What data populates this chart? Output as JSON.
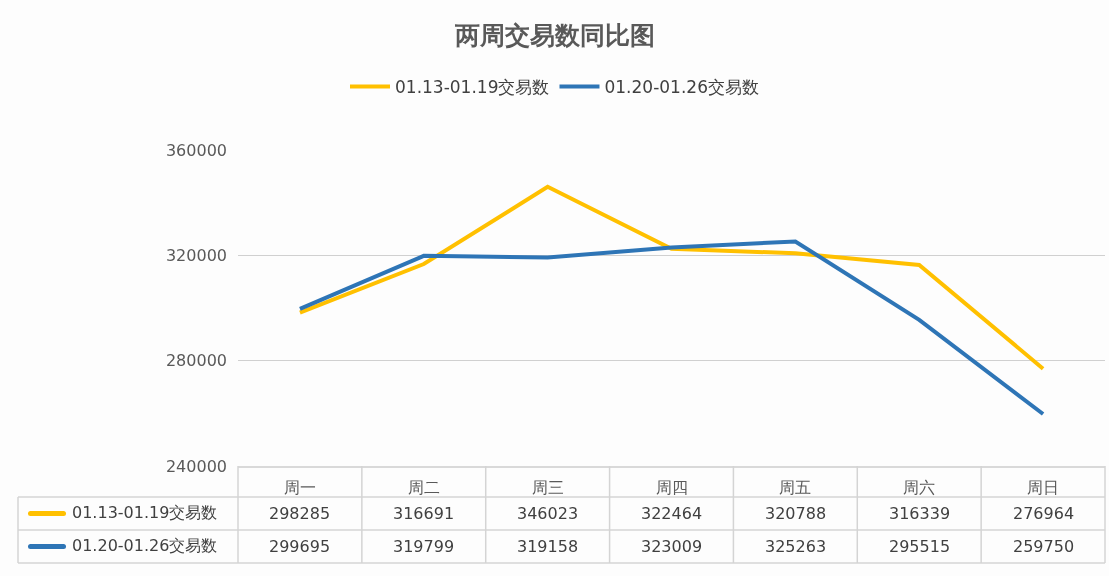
{
  "chart_data": {
    "type": "line",
    "title": "两周交易数同比图",
    "categories": [
      "周一",
      "周二",
      "周三",
      "周四",
      "周五",
      "周六",
      "周日"
    ],
    "series": [
      {
        "name": "01.13-01.19交易数",
        "color": "#ffc000",
        "values": [
          298285,
          316691,
          346023,
          322464,
          320788,
          316339,
          276964
        ]
      },
      {
        "name": "01.20-01.26交易数",
        "color": "#2e75b6",
        "values": [
          299695,
          319799,
          319158,
          323009,
          325263,
          295515,
          259750
        ]
      }
    ],
    "ylim": [
      240000,
      360000
    ],
    "yticks": [
      240000,
      280000,
      320000,
      360000
    ],
    "grid": "y",
    "legend": "top",
    "marker": "none",
    "line_style": "solid",
    "data_labels": true
  }
}
